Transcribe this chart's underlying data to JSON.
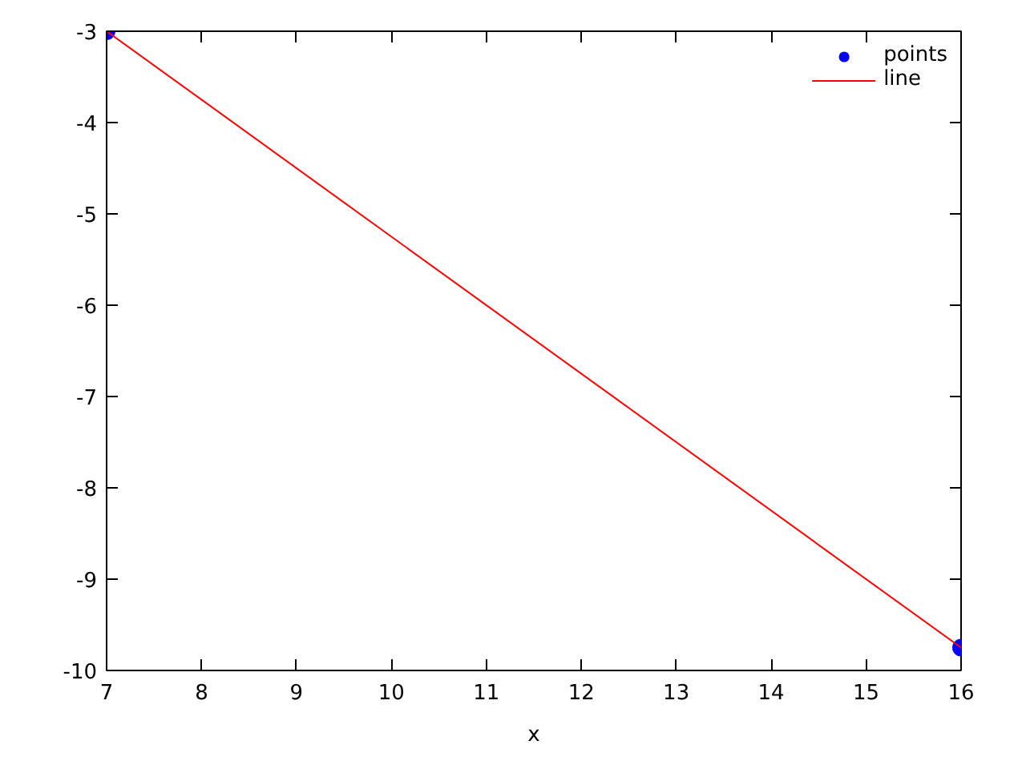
{
  "chart_data": {
    "type": "line",
    "xlabel": "x",
    "xlim": [
      7,
      16
    ],
    "ylim": [
      -10,
      -3
    ],
    "xticks": [
      7,
      8,
      9,
      10,
      11,
      12,
      13,
      14,
      15,
      16
    ],
    "yticks": [
      -10,
      -9,
      -8,
      -7,
      -6,
      -5,
      -4,
      -3
    ],
    "legend": "top right",
    "x": [
      7,
      16
    ],
    "series": [
      {
        "name": "points",
        "type": "scatter",
        "marker": "circle",
        "color": "#0000ff",
        "values": [
          -3,
          -9.75
        ]
      },
      {
        "name": "line",
        "line_style": "solid",
        "color": "#ff0000",
        "values": [
          -3,
          -9.75
        ]
      }
    ]
  }
}
